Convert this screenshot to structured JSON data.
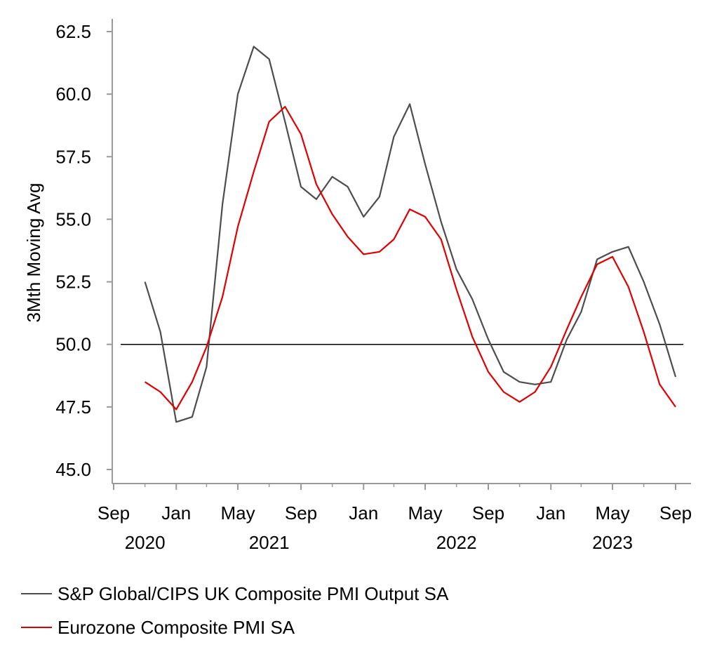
{
  "chart_data": {
    "type": "line",
    "ylabel": "3Mth Moving Avg",
    "ylim": [
      45.0,
      62.5
    ],
    "yticks": [
      "45.0",
      "47.5",
      "50.0",
      "52.5",
      "55.0",
      "57.5",
      "60.0",
      "62.5"
    ],
    "reference_line": 50.0,
    "x_months": [
      "2020-11",
      "2020-12",
      "2021-01",
      "2021-02",
      "2021-03",
      "2021-04",
      "2021-05",
      "2021-06",
      "2021-07",
      "2021-08",
      "2021-09",
      "2021-10",
      "2021-11",
      "2021-12",
      "2022-01",
      "2022-02",
      "2022-03",
      "2022-04",
      "2022-05",
      "2022-06",
      "2022-07",
      "2022-08",
      "2022-09",
      "2022-10",
      "2022-11",
      "2022-12",
      "2023-01",
      "2023-02",
      "2023-03",
      "2023-04",
      "2023-05",
      "2023-06",
      "2023-07",
      "2023-08",
      "2023-09"
    ],
    "xticks": [
      {
        "month": "2020-09",
        "label": "Sep"
      },
      {
        "month": "2021-01",
        "label": "Jan"
      },
      {
        "month": "2021-05",
        "label": "May"
      },
      {
        "month": "2021-09",
        "label": "Sep"
      },
      {
        "month": "2022-01",
        "label": "Jan"
      },
      {
        "month": "2022-05",
        "label": "May"
      },
      {
        "month": "2022-09",
        "label": "Sep"
      },
      {
        "month": "2023-01",
        "label": "Jan"
      },
      {
        "month": "2023-05",
        "label": "May"
      },
      {
        "month": "2023-09",
        "label": "Sep"
      }
    ],
    "year_labels": [
      {
        "month": "2020-11",
        "label": "2020"
      },
      {
        "month": "2021-07",
        "label": "2021"
      },
      {
        "month": "2022-07",
        "label": "2022"
      },
      {
        "month": "2023-05",
        "label": "2023"
      }
    ],
    "series": [
      {
        "name": "S&P Global/CIPS UK Composite PMI Output SA",
        "color": "#4d4d4d",
        "values": [
          52.5,
          50.5,
          46.9,
          47.1,
          49.1,
          55.6,
          60.0,
          61.9,
          61.4,
          58.9,
          56.3,
          55.8,
          56.7,
          56.3,
          55.1,
          55.9,
          58.3,
          59.6,
          57.2,
          54.9,
          53.0,
          51.8,
          50.2,
          48.9,
          48.5,
          48.4,
          48.5,
          50.2,
          51.3,
          53.4,
          53.7,
          53.9,
          52.5,
          50.8,
          48.7
        ]
      },
      {
        "name": "Eurozone Composite PMI SA",
        "color": "#e00000",
        "values": [
          48.5,
          48.1,
          47.4,
          48.5,
          49.9,
          51.9,
          54.7,
          56.9,
          58.9,
          59.5,
          58.4,
          56.4,
          55.2,
          54.3,
          53.6,
          53.7,
          54.2,
          55.4,
          55.1,
          54.2,
          52.2,
          50.3,
          48.9,
          48.1,
          47.7,
          48.1,
          49.1,
          50.6,
          51.9,
          53.2,
          53.5,
          52.3,
          50.5,
          48.4,
          47.5
        ]
      }
    ]
  },
  "legend": {
    "items": [
      {
        "label": "S&P Global/CIPS UK Composite PMI Output SA",
        "color": "#4d4d4d"
      },
      {
        "label": "Eurozone Composite PMI SA",
        "color": "#e00000"
      }
    ]
  }
}
